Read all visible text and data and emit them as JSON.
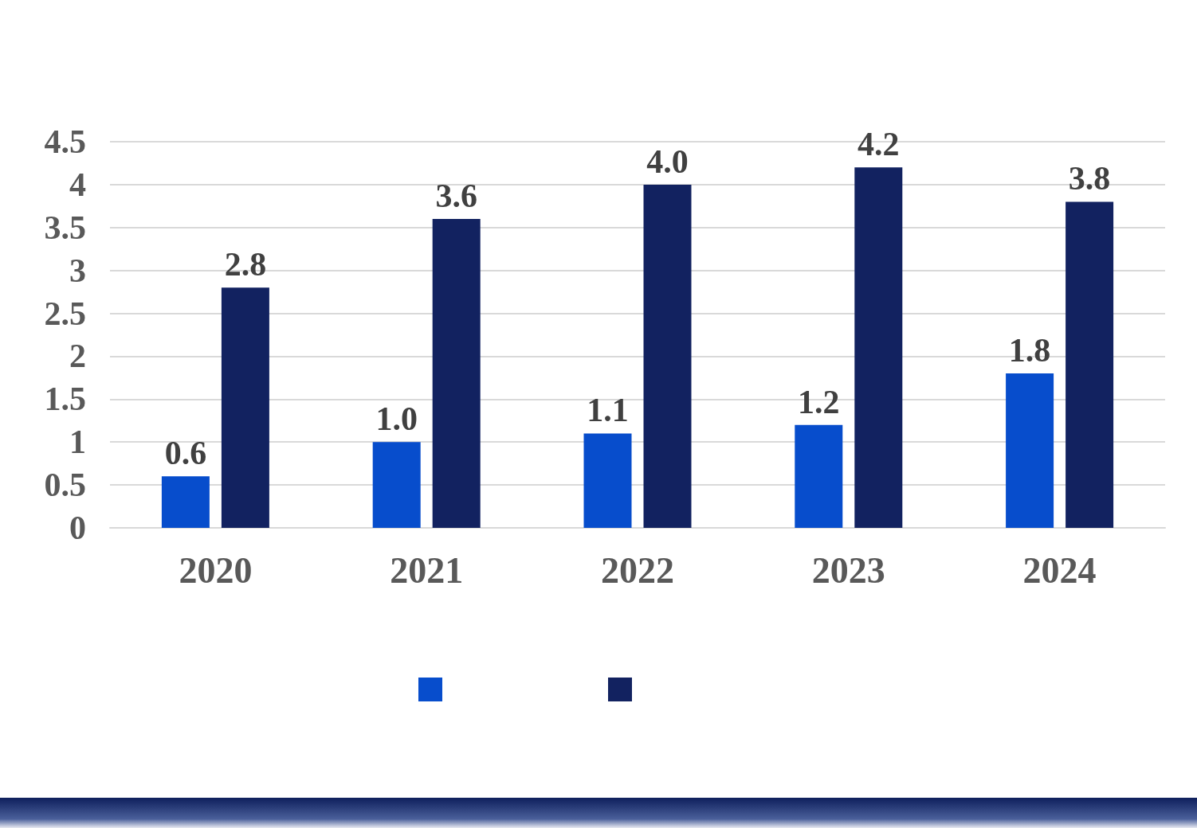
{
  "chart_data": {
    "type": "bar",
    "categories": [
      "2020",
      "2021",
      "2022",
      "2023",
      "2024"
    ],
    "series": [
      {
        "color": "#074dcc",
        "values": [
          0.6,
          1.0,
          1.1,
          1.2,
          1.8
        ],
        "value_labels": [
          "0.6",
          "1.0",
          "1.1",
          "1.2",
          "1.8"
        ]
      },
      {
        "color": "#122260",
        "values": [
          2.8,
          3.6,
          4.0,
          4.2,
          3.8
        ],
        "value_labels": [
          "2.8",
          "3.6",
          "4.0",
          "4.2",
          "3.8"
        ]
      }
    ],
    "ylim": [
      0,
      4.5
    ],
    "yticks": [
      0,
      0.5,
      1,
      1.5,
      2,
      2.5,
      3,
      3.5,
      4,
      4.5
    ],
    "grid": "y"
  }
}
